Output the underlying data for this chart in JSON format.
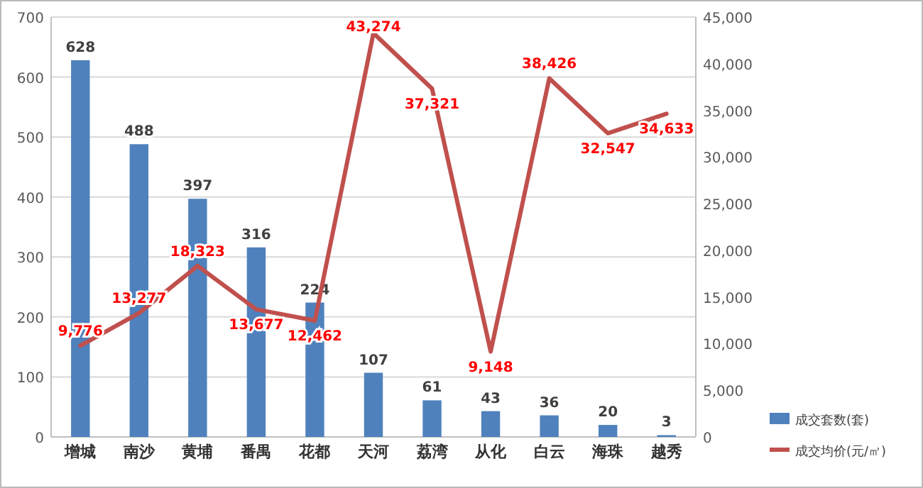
{
  "chart_data": {
    "type": "bar",
    "categories": [
      "增城",
      "南沙",
      "黄埔",
      "番禺",
      "花都",
      "天河",
      "荔湾",
      "从化",
      "白云",
      "海珠",
      "越秀"
    ],
    "series": [
      {
        "name": "成交套数(套)",
        "color": "#4f81bd",
        "values": [
          628,
          488,
          397,
          316,
          224,
          107,
          61,
          43,
          36,
          20,
          3
        ],
        "value_labels": [
          "628",
          "488",
          "397",
          "316",
          "224",
          "107",
          "61",
          "43",
          "36",
          "20",
          "3"
        ]
      },
      {
        "name": "成交均价(元/㎡)",
        "type": "line",
        "axis": "y2",
        "color": "#c0504d",
        "values": [
          9776,
          13277,
          18323,
          13677,
          12462,
          43274,
          37321,
          9148,
          38426,
          32547,
          34633
        ],
        "value_labels": [
          "9,776",
          "13,277",
          "18,323",
          "13,677",
          "12,462",
          "43,274",
          "37,321",
          "9,148",
          "38,426",
          "32,547",
          "34,633"
        ]
      }
    ],
    "ylim": [
      0,
      700
    ],
    "yticks": [
      0,
      100,
      200,
      300,
      400,
      500,
      600,
      700
    ],
    "y2lim": [
      0,
      45000
    ],
    "y2ticks": [
      0,
      {
        "value": 5000,
        "label": "5,000"
      },
      {
        "value": 10000,
        "label": "10,000"
      },
      {
        "value": 15000,
        "label": "15,000"
      },
      {
        "value": 20000,
        "label": "20,000"
      },
      {
        "value": 25000,
        "label": "25,000"
      },
      {
        "value": 30000,
        "label": "30,000"
      },
      {
        "value": 35000,
        "label": "35,000"
      },
      {
        "value": 40000,
        "label": "40,000"
      },
      {
        "value": 45000,
        "label": "45,000"
      }
    ],
    "grid": "y",
    "legend": "bottom right"
  }
}
